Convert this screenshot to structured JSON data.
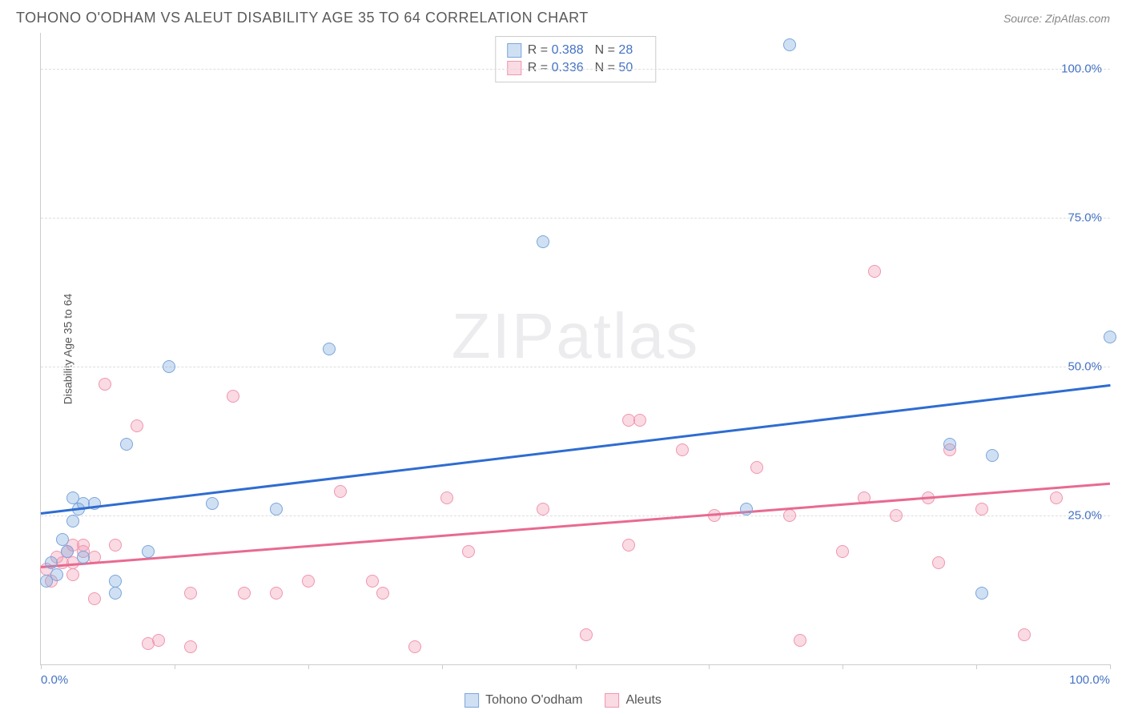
{
  "title": "TOHONO O'ODHAM VS ALEUT DISABILITY AGE 35 TO 64 CORRELATION CHART",
  "source": "Source: ZipAtlas.com",
  "watermark": "ZIPatlas",
  "ylabel": "Disability Age 35 to 64",
  "chart": {
    "type": "scatter",
    "xlim": [
      0,
      100
    ],
    "ylim": [
      0,
      106
    ],
    "y_ticks": [
      25,
      50,
      75,
      100
    ],
    "y_tick_labels": [
      "25.0%",
      "50.0%",
      "75.0%",
      "100.0%"
    ],
    "x_ticks": [
      0,
      12.5,
      25,
      37.5,
      50,
      62.5,
      75,
      87.5,
      100
    ],
    "x_tick_labels": {
      "0": "0.0%",
      "100": "100.0%"
    },
    "grid_color": "#dddddd",
    "axis_color": "#cccccc",
    "background_color": "#ffffff",
    "tick_label_color": "#4472c4",
    "marker_radius": 8,
    "series": [
      {
        "name": "Tohono O'odham",
        "color_fill": "rgba(120,165,220,0.35)",
        "color_stroke": "#7aa5dc",
        "trend_color": "#2e6cd1",
        "r": "0.388",
        "n": "28",
        "trend": {
          "x1": 0,
          "y1": 25.5,
          "x2": 100,
          "y2": 47
        },
        "points": [
          [
            0.5,
            14
          ],
          [
            1,
            17
          ],
          [
            1.5,
            15
          ],
          [
            2,
            21
          ],
          [
            2.5,
            19
          ],
          [
            3,
            24
          ],
          [
            3,
            28
          ],
          [
            3.5,
            26
          ],
          [
            4,
            18
          ],
          [
            4,
            27
          ],
          [
            5,
            27
          ],
          [
            7,
            14
          ],
          [
            7,
            12
          ],
          [
            8,
            37
          ],
          [
            10,
            19
          ],
          [
            12,
            50
          ],
          [
            16,
            27
          ],
          [
            22,
            26
          ],
          [
            27,
            53
          ],
          [
            47,
            71
          ],
          [
            66,
            26
          ],
          [
            70,
            104
          ],
          [
            85,
            37
          ],
          [
            88,
            12
          ],
          [
            89,
            35
          ],
          [
            100,
            55
          ]
        ]
      },
      {
        "name": "Aleuts",
        "color_fill": "rgba(240,150,175,0.35)",
        "color_stroke": "#f096af",
        "trend_color": "#e86a91",
        "r": "0.336",
        "n": "50",
        "trend": {
          "x1": 0,
          "y1": 16.5,
          "x2": 100,
          "y2": 30.5
        },
        "points": [
          [
            0.5,
            16
          ],
          [
            1,
            14
          ],
          [
            1.5,
            18
          ],
          [
            2,
            17
          ],
          [
            2.5,
            19
          ],
          [
            3,
            20
          ],
          [
            3,
            15
          ],
          [
            3,
            17
          ],
          [
            4,
            20
          ],
          [
            4,
            19
          ],
          [
            5,
            18
          ],
          [
            5,
            11
          ],
          [
            6,
            47
          ],
          [
            7,
            20
          ],
          [
            9,
            40
          ],
          [
            10,
            3.5
          ],
          [
            11,
            4
          ],
          [
            14,
            3
          ],
          [
            14,
            12
          ],
          [
            18,
            45
          ],
          [
            19,
            12
          ],
          [
            22,
            12
          ],
          [
            25,
            14
          ],
          [
            28,
            29
          ],
          [
            31,
            14
          ],
          [
            32,
            12
          ],
          [
            35,
            3
          ],
          [
            38,
            28
          ],
          [
            40,
            19
          ],
          [
            47,
            26
          ],
          [
            51,
            5
          ],
          [
            55,
            41
          ],
          [
            55,
            20
          ],
          [
            56,
            41
          ],
          [
            60,
            36
          ],
          [
            63,
            25
          ],
          [
            67,
            33
          ],
          [
            70,
            25
          ],
          [
            71,
            4
          ],
          [
            75,
            19
          ],
          [
            77,
            28
          ],
          [
            78,
            66
          ],
          [
            80,
            25
          ],
          [
            83,
            28
          ],
          [
            84,
            17
          ],
          [
            85,
            36
          ],
          [
            88,
            26
          ],
          [
            92,
            5
          ],
          [
            95,
            28
          ]
        ]
      }
    ]
  },
  "legend_bottom": [
    "Tohono O'odham",
    "Aleuts"
  ]
}
